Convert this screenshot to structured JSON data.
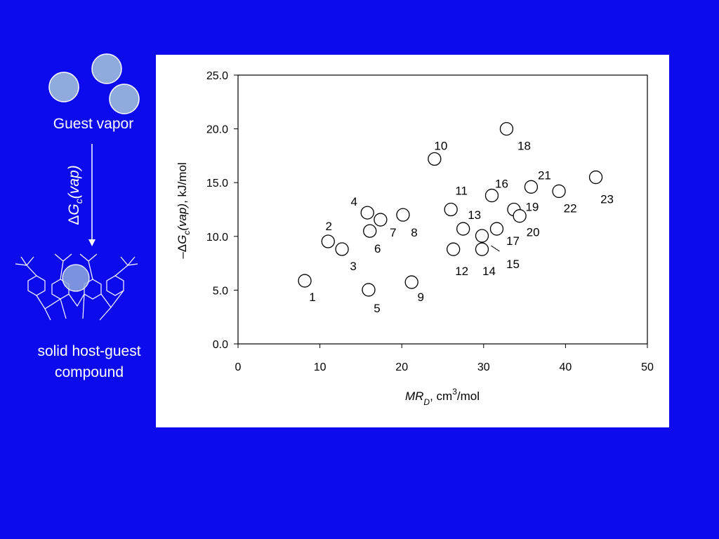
{
  "slide": {
    "guest_label": "Guest vapor",
    "arrow_label": [
      "Δ",
      "G",
      "c",
      "(vap)"
    ],
    "product_label": [
      "solid host-guest",
      "compound"
    ]
  },
  "chart_data": {
    "type": "scatter",
    "x": [
      8.15,
      11.0,
      12.7,
      15.8,
      15.95,
      16.1,
      17.4,
      20.15,
      21.2,
      24.0,
      26.0,
      26.3,
      27.5,
      29.8,
      29.8,
      31.0,
      31.6,
      32.8,
      33.7,
      34.4,
      35.8,
      39.2,
      43.7
    ],
    "values": [
      5.87,
      9.53,
      8.81,
      12.2,
      5.03,
      10.5,
      11.55,
      12.0,
      5.74,
      17.2,
      12.5,
      8.8,
      10.7,
      8.8,
      10.05,
      13.8,
      10.7,
      20.0,
      12.5,
      11.9,
      14.6,
      14.2,
      15.5
    ],
    "point_labels": [
      "1",
      "2",
      "3",
      "4",
      "5",
      "6",
      "7",
      "8",
      "9",
      "10",
      "11",
      "12",
      "13",
      "14",
      "15",
      "16",
      "17",
      "18",
      "19",
      "20",
      "21",
      "22",
      "23"
    ],
    "marker_color": "#000000",
    "xlim": [
      0,
      50
    ],
    "ylim": [
      0,
      25
    ],
    "xticks": [
      0,
      10,
      20,
      30,
      40,
      50
    ],
    "yticks": [
      {
        "value": 0,
        "label": "0.0"
      },
      {
        "value": 5,
        "label": "5.0"
      },
      {
        "value": 10,
        "label": "10.0"
      },
      {
        "value": 15,
        "label": "15.0"
      },
      {
        "value": 20,
        "label": "20.0"
      },
      {
        "value": 25,
        "label": "25.0"
      }
    ],
    "x_label": [
      "MR",
      "D",
      ", cm",
      "3",
      "/mol"
    ],
    "y_label": [
      "–Δ",
      "G",
      "c",
      "(vap)",
      ", kJ/mol"
    ]
  }
}
